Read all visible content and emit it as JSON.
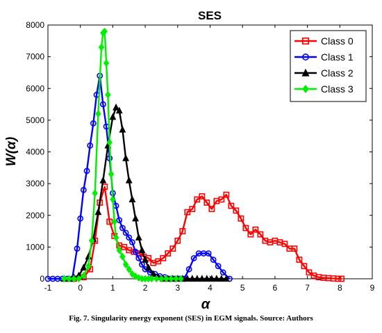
{
  "chart_data": {
    "type": "line",
    "title": "SES",
    "xlabel": "α",
    "ylabel": "W(α)",
    "xlim": [
      -1,
      9
    ],
    "ylim": [
      0,
      8000
    ],
    "xticks": [
      -1,
      0,
      1,
      2,
      3,
      4,
      5,
      6,
      7,
      8,
      9
    ],
    "yticks": [
      0,
      1000,
      2000,
      3000,
      4000,
      5000,
      6000,
      7000,
      8000
    ],
    "legend_position": "top-right",
    "series": [
      {
        "name": "Class 0",
        "color": "#ff0000",
        "marker": "square",
        "x": [
          -0.2,
          0.1,
          0.3,
          0.45,
          0.6,
          0.75,
          0.9,
          1.05,
          1.2,
          1.35,
          1.5,
          1.65,
          1.8,
          1.95,
          2.1,
          2.25,
          2.4,
          2.55,
          2.7,
          2.85,
          3.0,
          3.15,
          3.3,
          3.45,
          3.6,
          3.75,
          3.9,
          4.05,
          4.2,
          4.35,
          4.5,
          4.65,
          4.8,
          4.95,
          5.1,
          5.25,
          5.4,
          5.55,
          5.7,
          5.85,
          6.0,
          6.15,
          6.3,
          6.45,
          6.6,
          6.75,
          6.9,
          7.05,
          7.2,
          7.35,
          7.5,
          7.65,
          7.8,
          7.95,
          8.05
        ],
        "y": [
          0,
          50,
          300,
          1200,
          2400,
          2900,
          1800,
          1350,
          1050,
          1000,
          900,
          850,
          800,
          700,
          650,
          500,
          550,
          650,
          800,
          950,
          1200,
          1500,
          2100,
          2200,
          2500,
          2600,
          2400,
          2200,
          2450,
          2500,
          2650,
          2300,
          2150,
          1900,
          1600,
          1400,
          1550,
          1400,
          1200,
          1150,
          1200,
          1150,
          1100,
          950,
          950,
          600,
          400,
          200,
          100,
          50,
          30,
          20,
          10,
          0,
          0
        ]
      },
      {
        "name": "Class 1",
        "color": "#0000ff",
        "marker": "circle",
        "x": [
          -1,
          -0.85,
          -0.7,
          -0.55,
          -0.4,
          -0.25,
          -0.1,
          0.0,
          0.1,
          0.2,
          0.3,
          0.4,
          0.5,
          0.6,
          0.7,
          0.8,
          0.9,
          1.0,
          1.1,
          1.2,
          1.3,
          1.4,
          1.5,
          1.6,
          1.7,
          1.8,
          1.9,
          2.0,
          2.15,
          2.3,
          2.45,
          2.6,
          2.75,
          2.9,
          3.05,
          3.2,
          3.35,
          3.5,
          3.65,
          3.8,
          3.95,
          4.1,
          4.25,
          4.4,
          4.6
        ],
        "y": [
          0,
          0,
          0,
          0,
          0,
          0,
          950,
          1900,
          2800,
          3400,
          4200,
          4900,
          5800,
          6400,
          5500,
          4800,
          3800,
          2700,
          2300,
          1850,
          1600,
          1450,
          1300,
          1150,
          850,
          650,
          450,
          300,
          200,
          150,
          80,
          50,
          0,
          0,
          0,
          0,
          300,
          650,
          800,
          800,
          800,
          600,
          400,
          200,
          0
        ]
      },
      {
        "name": "Class 2",
        "color": "#000000",
        "marker": "triangle",
        "x": [
          -0.5,
          -0.35,
          -0.2,
          -0.05,
          0.1,
          0.25,
          0.4,
          0.55,
          0.7,
          0.85,
          1.0,
          1.1,
          1.2,
          1.3,
          1.4,
          1.5,
          1.6,
          1.7,
          1.8,
          1.9,
          2.0,
          2.1,
          2.25,
          2.4,
          2.55,
          2.7,
          2.85,
          3.0,
          3.15,
          3.3,
          3.45,
          3.6,
          3.75,
          3.9,
          4.05,
          4.2,
          4.35,
          4.5
        ],
        "y": [
          0,
          0,
          50,
          100,
          350,
          700,
          1250,
          2100,
          3100,
          4200,
          5100,
          5400,
          5300,
          4700,
          3800,
          3100,
          2500,
          1900,
          1300,
          900,
          600,
          350,
          150,
          50,
          0,
          0,
          0,
          0,
          0,
          0,
          0,
          0,
          0,
          0,
          0,
          0,
          0,
          0
        ]
      },
      {
        "name": "Class 3",
        "color": "#00ee00",
        "marker": "diamond",
        "x": [
          -0.5,
          -0.35,
          -0.2,
          -0.05,
          0.1,
          0.25,
          0.35,
          0.45,
          0.55,
          0.65,
          0.7,
          0.75,
          0.8,
          0.85,
          0.9,
          0.95,
          1.0,
          1.05,
          1.1,
          1.2,
          1.3,
          1.4,
          1.5,
          1.6,
          1.7,
          1.8,
          1.9,
          2.0,
          2.1,
          2.2,
          2.35,
          2.5,
          2.65,
          2.8,
          2.95,
          3.1
        ],
        "y": [
          0,
          0,
          0,
          0,
          100,
          400,
          1200,
          2700,
          5200,
          7300,
          7750,
          7800,
          6800,
          5800,
          4300,
          3300,
          2500,
          1800,
          1300,
          900,
          700,
          450,
          300,
          150,
          80,
          30,
          0,
          0,
          0,
          0,
          0,
          0,
          0,
          0,
          0,
          0
        ]
      }
    ]
  },
  "caption": "Fig. 7. Singularity energy exponent (SES) in EGM signals. Source: Authors"
}
